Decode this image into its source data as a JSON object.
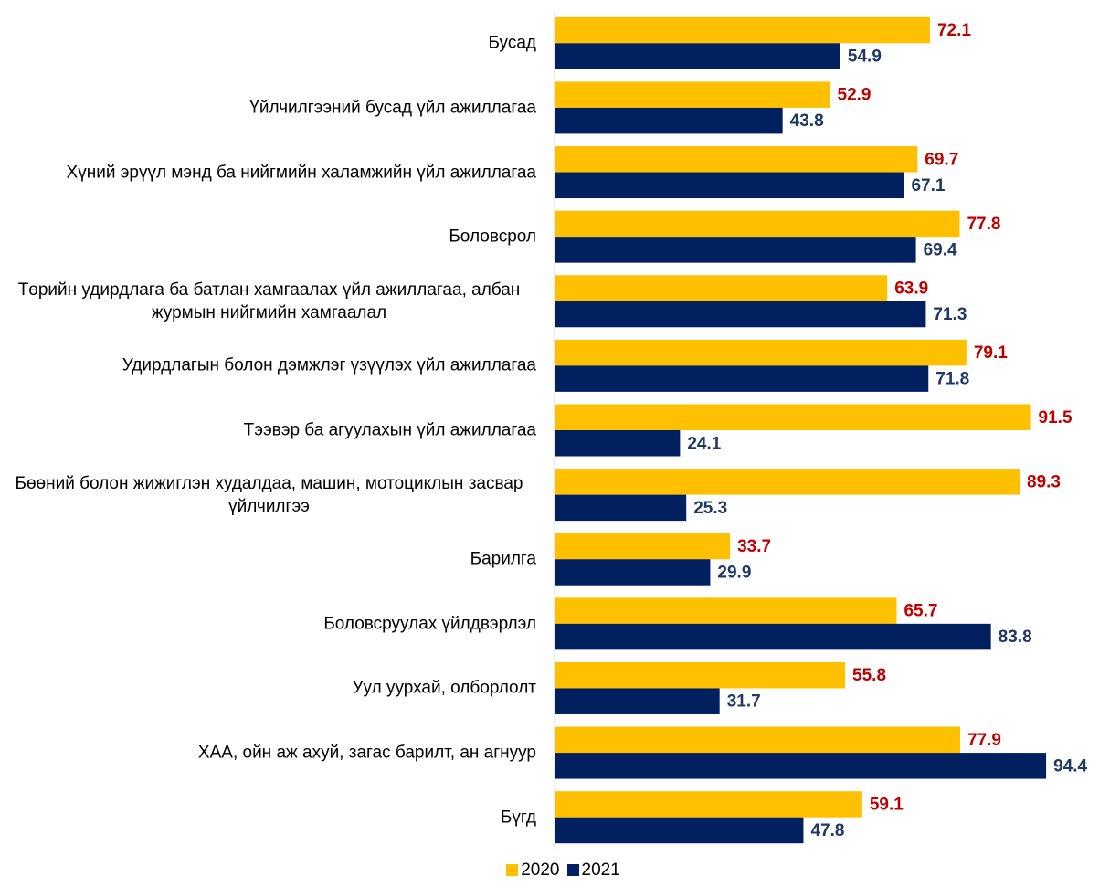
{
  "chart_data": {
    "type": "barh",
    "categories": [
      "Бусад",
      "Үйлчилгээний бусад үйл ажиллагаа",
      "Хүний эрүүл мэнд ба нийгмийн халамжийн үйл ажиллагаа",
      "Боловсрол",
      "Төрийн удирдлага ба батлан хамгаалах үйл ажиллагаа, албан журмын нийгмийн хамгаалал",
      "Удирдлагын болон дэмжлэг үзүүлэх үйл ажиллагаа",
      "Тээвэр ба агуулахын  үйл ажиллагаа",
      "Бөөний болон жижиглэн худалдаа, машин, мотоциклын засвар үйлчилгээ",
      "Барилга",
      "Боловсруулах үйлдвэрлэл",
      "Уул уурхай, олборлолт",
      "ХАА, ойн аж ахуй, загас барилт, ан агнуур",
      "Бүгд"
    ],
    "series": [
      {
        "name": "2020",
        "color": "#FFC000",
        "label_color": "#C00000",
        "values": [
          72.1,
          52.9,
          69.7,
          77.8,
          63.9,
          79.1,
          91.5,
          89.3,
          33.7,
          65.7,
          55.8,
          77.9,
          59.1
        ]
      },
      {
        "name": "2021",
        "color": "#002060",
        "label_color": "#1F3864",
        "values": [
          54.9,
          43.8,
          67.1,
          69.4,
          71.3,
          71.8,
          24.1,
          25.3,
          29.9,
          83.8,
          31.7,
          94.4,
          47.8
        ]
      }
    ],
    "xlim": [
      0,
      100
    ],
    "legend": "bottom"
  }
}
